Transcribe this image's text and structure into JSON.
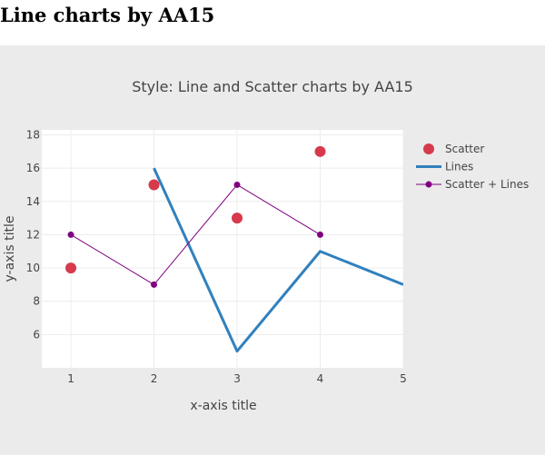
{
  "page": {
    "heading": "Line charts by AA15"
  },
  "colors": {
    "paper_bg": "#ebebeb",
    "plot_bg": "#ffffff",
    "grid": "#ececec",
    "text": "#444444",
    "scatter": "#d7394d",
    "lines": "#3180bd",
    "scatter_lines": "#800080"
  },
  "chart_data": {
    "type": "line",
    "title": "Style: Line and Scatter charts by AA15",
    "xlabel": "x-axis title",
    "ylabel": "y-axis title",
    "xlim": [
      0.65,
      5
    ],
    "ylim": [
      4,
      18.3
    ],
    "xticks": [
      1,
      2,
      3,
      4,
      5
    ],
    "yticks": [
      6,
      8,
      10,
      12,
      14,
      16,
      18
    ],
    "grid": true,
    "legend_position": "right",
    "series": [
      {
        "name": "Scatter",
        "mode": "markers",
        "x": [
          1,
          2,
          3,
          4
        ],
        "y": [
          10,
          15,
          13,
          17
        ]
      },
      {
        "name": "Lines",
        "mode": "lines",
        "x": [
          2,
          3,
          4,
          5
        ],
        "y": [
          16,
          5,
          11,
          9
        ]
      },
      {
        "name": "Scatter + Lines",
        "mode": "lines+markers",
        "x": [
          1,
          2,
          3,
          4
        ],
        "y": [
          12,
          9,
          15,
          12
        ]
      }
    ]
  }
}
